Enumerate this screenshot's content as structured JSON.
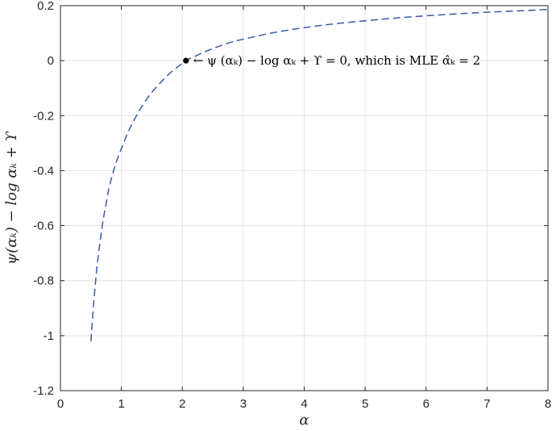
{
  "chart_data": {
    "type": "line",
    "title": "",
    "xlabel": "α",
    "ylabel": "ψ(αₖ) − log αₖ + ϒ",
    "xlim": [
      0,
      8
    ],
    "ylim": [
      -1.2,
      0.2
    ],
    "grid": true,
    "x_ticks": [
      "0",
      "1",
      "2",
      "3",
      "4",
      "5",
      "6",
      "7",
      "8"
    ],
    "y_ticks": [
      "0.2",
      "0",
      "-0.2",
      "-0.4",
      "-0.6",
      "-0.8",
      "-1",
      "-1.2"
    ],
    "series": [
      {
        "style": "dashed",
        "color": "#3a5aa6",
        "x": [
          0.5,
          0.55,
          0.6,
          0.65,
          0.7,
          0.75,
          0.8,
          0.9,
          1.0,
          1.1,
          1.2,
          1.3,
          1.4,
          1.5,
          1.6,
          1.8,
          2.0,
          2.06,
          2.2,
          2.4,
          2.6,
          2.8,
          3.0,
          3.5,
          4.0,
          4.5,
          5.0,
          5.5,
          6.0,
          6.5,
          7.0,
          7.5,
          8.0
        ],
        "y": [
          -1.02,
          -0.87,
          -0.75,
          -0.66,
          -0.58,
          -0.52,
          -0.46,
          -0.38,
          -0.32,
          -0.265,
          -0.22,
          -0.18,
          -0.145,
          -0.115,
          -0.09,
          -0.045,
          -0.01,
          0.0,
          0.015,
          0.035,
          0.052,
          0.067,
          0.078,
          0.102,
          0.12,
          0.134,
          0.145,
          0.155,
          0.163,
          0.17,
          0.176,
          0.181,
          0.186
        ]
      }
    ],
    "marker": {
      "x": 2.06,
      "y": 0.0
    },
    "annotation": {
      "text": "← ψ (αₖ) − log αₖ + ϒ = 0, which is MLE α̂ₖ = 2",
      "x": 2.06,
      "y": 0.0
    }
  }
}
